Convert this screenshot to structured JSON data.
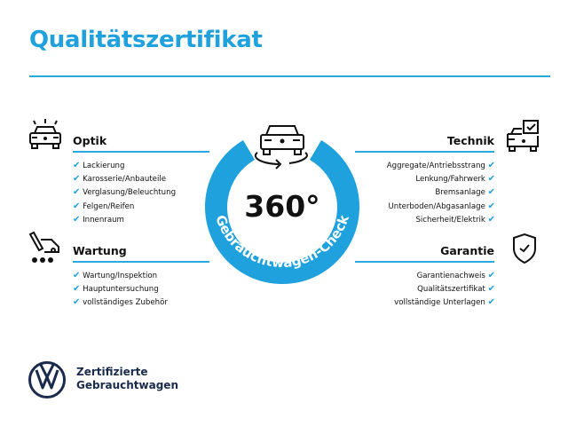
{
  "title": "Qualitätszertifikat",
  "colors": {
    "accent": "#1ea1dc",
    "brand": "#1a2b4c"
  },
  "badge": {
    "value": "360°",
    "ring_text": "Gebrauchtwagen-Check",
    "icon": "car-rotate-icon"
  },
  "sections": {
    "optik": {
      "heading": "Optik",
      "icon": "car-lights-icon",
      "items": [
        "Lackierung",
        "Karosserie/Anbauteile",
        "Verglasung/Beleuchtung",
        "Felgen/Reifen",
        "Innenraum"
      ]
    },
    "wartung": {
      "heading": "Wartung",
      "icon": "service-tools-icon",
      "items": [
        "Wartung/Inspektion",
        "Hauptuntersuchung",
        "vollständiges Zubehör"
      ]
    },
    "technik": {
      "heading": "Technik",
      "icon": "car-checkbox-icon",
      "items": [
        "Aggregate/Antriebsstrang",
        "Lenkung/Fahrwerk",
        "Bremsanlage",
        "Unterboden/Abgasanlage",
        "Sicherheit/Elektrik"
      ]
    },
    "garantie": {
      "heading": "Garantie",
      "icon": "shield-check-icon",
      "items": [
        "Garantienachweis",
        "Qualitätszertifikat",
        "vollständige Unterlagen"
      ]
    }
  },
  "check_mark": "✔",
  "footer": {
    "line1": "Zertifizierte",
    "line2": "Gebrauchtwagen",
    "logo": "vw-logo"
  }
}
